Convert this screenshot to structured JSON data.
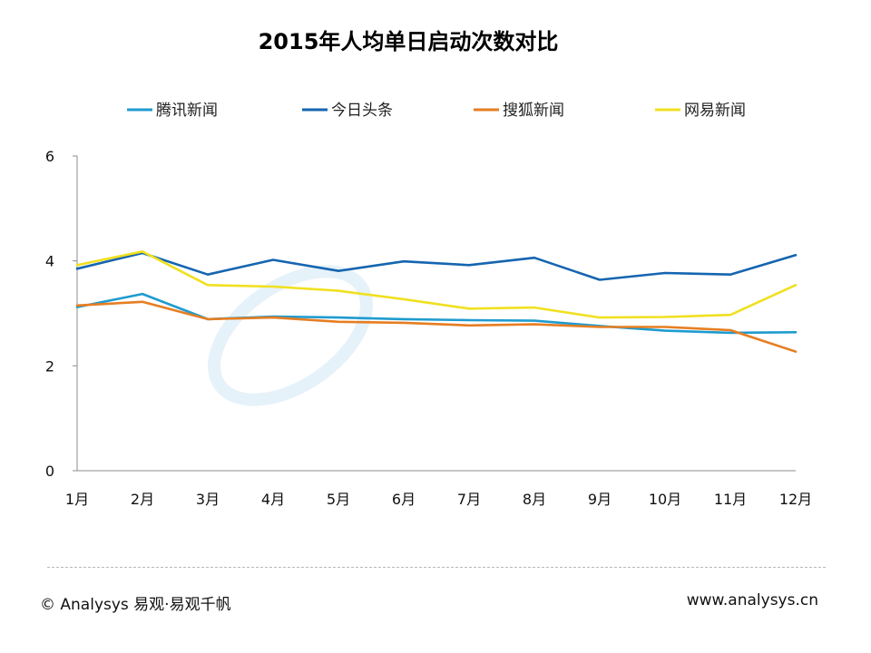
{
  "footer": {
    "copyright": "© Analysys 易观·易观千帆",
    "website": "www.analysys.cn"
  },
  "chart_data": {
    "type": "line",
    "title": "2015年人均单日启动次数对比",
    "xlabel": "",
    "ylabel": "",
    "categories": [
      "1月",
      "2月",
      "3月",
      "4月",
      "5月",
      "6月",
      "7月",
      "8月",
      "9月",
      "10月",
      "11月",
      "12月"
    ],
    "yticks": [
      "0",
      "2",
      "4",
      "6"
    ],
    "ylim": [
      0,
      6
    ],
    "grid": false,
    "legend_position": "top",
    "series": [
      {
        "name": "腾讯新闻",
        "color": "#1f9bcf",
        "values": [
          3.12,
          3.37,
          2.89,
          2.94,
          2.92,
          2.89,
          2.87,
          2.86,
          2.76,
          2.67,
          2.63,
          2.64
        ]
      },
      {
        "name": "今日头条",
        "color": "#1565b0",
        "values": [
          3.85,
          4.15,
          3.74,
          4.02,
          3.81,
          3.99,
          3.92,
          4.06,
          3.64,
          3.77,
          3.74,
          4.11
        ]
      },
      {
        "name": "搜狐新闻",
        "color": "#e67e22",
        "values": [
          3.15,
          3.22,
          2.89,
          2.92,
          2.84,
          2.82,
          2.77,
          2.79,
          2.74,
          2.74,
          2.68,
          2.27
        ]
      },
      {
        "name": "网易新闻",
        "color": "#f0e020",
        "values": [
          3.92,
          4.18,
          3.54,
          3.51,
          3.43,
          3.27,
          3.09,
          3.11,
          2.92,
          2.93,
          2.97,
          3.54
        ]
      }
    ]
  }
}
